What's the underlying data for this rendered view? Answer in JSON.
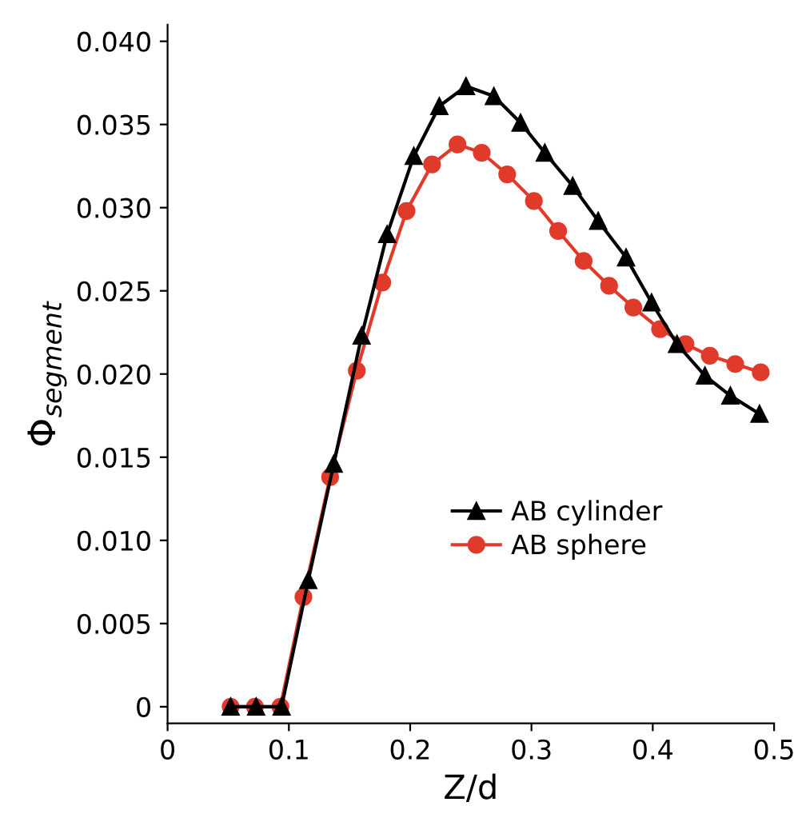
{
  "chart_data": {
    "type": "line",
    "xlabel": "Z/d",
    "ylabel": "Φ$_{segment}$",
    "xlim": [
      0,
      0.5
    ],
    "xticks": [
      0,
      0.1,
      0.2,
      0.3,
      0.4,
      0.5
    ],
    "ylim": [
      -0.001,
      0.041
    ],
    "yticks": [
      0,
      {
        "value": 0.005,
        "label": "0.005"
      },
      {
        "value": 0.01,
        "label": "0.010"
      },
      {
        "value": 0.015,
        "label": "0.015"
      },
      {
        "value": 0.02,
        "label": "0.020"
      },
      {
        "value": 0.025,
        "label": "0.025"
      },
      {
        "value": 0.03,
        "label": "0.030"
      },
      {
        "value": 0.035,
        "label": "0.035"
      },
      {
        "value": 0.04,
        "label": "0.040"
      }
    ],
    "grid": false,
    "legend": "right",
    "series": [
      {
        "name": "AB cylinder",
        "color": "#000000",
        "marker": "triangle",
        "x": [
          0.052,
          0.073,
          0.094,
          0.116,
          0.137,
          0.16,
          0.181,
          0.203,
          0.224,
          0.246,
          0.269,
          0.291,
          0.311,
          0.334,
          0.355,
          0.378,
          0.399,
          0.42,
          0.443,
          0.464,
          0.488
        ],
        "values": [
          0,
          0,
          0,
          0.0076,
          0.0146,
          0.0223,
          0.0284,
          0.0331,
          0.0361,
          0.0373,
          0.0367,
          0.0351,
          0.0333,
          0.0313,
          0.0292,
          0.027,
          0.0243,
          0.0218,
          0.0199,
          0.0187,
          0.0176
        ]
      },
      {
        "name": "AB sphere",
        "color": "#e03a2a",
        "marker": "circle",
        "x": [
          0.052,
          0.072,
          0.093,
          0.112,
          0.134,
          0.156,
          0.177,
          0.197,
          0.218,
          0.239,
          0.259,
          0.28,
          0.302,
          0.322,
          0.343,
          0.364,
          0.384,
          0.406,
          0.427,
          0.447,
          0.468,
          0.489
        ],
        "values": [
          0,
          0,
          0,
          0.0066,
          0.0138,
          0.0202,
          0.0255,
          0.0298,
          0.0326,
          0.0338,
          0.0333,
          0.032,
          0.0304,
          0.0286,
          0.0268,
          0.0253,
          0.024,
          0.0227,
          0.0218,
          0.0211,
          0.0206,
          0.0201
        ]
      }
    ]
  }
}
